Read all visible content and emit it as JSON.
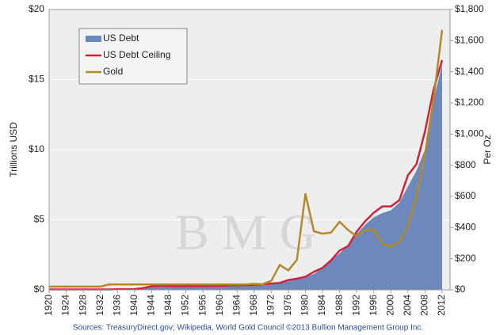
{
  "chart_data": {
    "type": "area-line",
    "ylabel": "Trillions USD",
    "y2label": "Per Oz",
    "source": "Sources: TreasuryDirect.gov; Wikipedia, World Gold Council  ©2013 Bullion Management Group Inc.",
    "watermark": "B M G",
    "x": [
      1920,
      1922,
      1924,
      1926,
      1928,
      1930,
      1932,
      1934,
      1936,
      1938,
      1940,
      1942,
      1944,
      1946,
      1948,
      1950,
      1952,
      1954,
      1956,
      1958,
      1960,
      1962,
      1964,
      1966,
      1968,
      1970,
      1972,
      1974,
      1976,
      1978,
      1980,
      1982,
      1984,
      1986,
      1988,
      1990,
      1992,
      1994,
      1996,
      1998,
      2000,
      2002,
      2004,
      2006,
      2008,
      2010,
      2012
    ],
    "xlim": [
      1920,
      2012
    ],
    "xticks": [
      1920,
      1924,
      1928,
      1932,
      1936,
      1940,
      1944,
      1948,
      1952,
      1956,
      1960,
      1964,
      1968,
      1972,
      1976,
      1980,
      1984,
      1988,
      1992,
      1996,
      2000,
      2004,
      2008,
      2012
    ],
    "ylim": [
      0,
      20
    ],
    "yticks": [
      {
        "value": 0,
        "label": "$0"
      },
      {
        "value": 5,
        "label": "$5"
      },
      {
        "value": 10,
        "label": "$10"
      },
      {
        "value": 15,
        "label": "$15"
      },
      {
        "value": 20,
        "label": "$20"
      }
    ],
    "y2lim": [
      0,
      1800
    ],
    "y2ticks": [
      {
        "value": 0,
        "label": "$0"
      },
      {
        "value": 200,
        "label": "$200"
      },
      {
        "value": 400,
        "label": "$400"
      },
      {
        "value": 600,
        "label": "$600"
      },
      {
        "value": 800,
        "label": "$800"
      },
      {
        "value": 1000,
        "label": "$1,000"
      },
      {
        "value": 1200,
        "label": "$1,200"
      },
      {
        "value": 1400,
        "label": "$1,400"
      },
      {
        "value": 1600,
        "label": "$1,600"
      },
      {
        "value": 1800,
        "label": "$1,800"
      }
    ],
    "grid": true,
    "legend": "upper left",
    "series": [
      {
        "name": "US Debt",
        "kind": "area",
        "color": "#6d88bc",
        "values": [
          0.024,
          0.023,
          0.021,
          0.02,
          0.018,
          0.016,
          0.019,
          0.027,
          0.034,
          0.037,
          0.043,
          0.072,
          0.2,
          0.27,
          0.25,
          0.26,
          0.26,
          0.27,
          0.27,
          0.28,
          0.29,
          0.3,
          0.31,
          0.32,
          0.35,
          0.37,
          0.43,
          0.48,
          0.62,
          0.77,
          0.91,
          1.14,
          1.57,
          2.12,
          2.6,
          3.21,
          4.0,
          4.64,
          5.18,
          5.48,
          5.67,
          6.23,
          7.38,
          8.51,
          10.02,
          13.56,
          16.07
        ]
      },
      {
        "name": "US Debt Ceiling",
        "kind": "line",
        "color": "#d0223a",
        "values": [
          0.03,
          0.03,
          0.03,
          0.03,
          0.03,
          0.03,
          0.03,
          0.03,
          0.04,
          0.045,
          0.049,
          0.125,
          0.26,
          0.3,
          0.275,
          0.275,
          0.275,
          0.281,
          0.278,
          0.288,
          0.293,
          0.308,
          0.324,
          0.33,
          0.358,
          0.395,
          0.45,
          0.495,
          0.7,
          0.8,
          0.935,
          1.29,
          1.57,
          2.11,
          2.8,
          3.12,
          4.15,
          4.9,
          5.5,
          5.95,
          5.95,
          6.4,
          8.18,
          8.97,
          11.32,
          14.29,
          16.39
        ]
      },
      {
        "name": "Gold",
        "kind": "line",
        "axis": "y2",
        "color": "#b08a2b",
        "values": [
          20.67,
          20.67,
          20.67,
          20.67,
          20.67,
          20.67,
          20.67,
          35,
          35,
          35,
          35,
          35,
          35,
          35,
          35,
          35,
          35,
          35,
          35,
          35,
          35,
          35,
          35,
          35,
          39,
          36,
          58,
          160,
          125,
          193,
          615,
          376,
          361,
          368,
          437,
          384,
          344,
          384,
          388,
          294,
          279,
          310,
          409,
          604,
          872,
          1225,
          1669
        ]
      }
    ]
  }
}
